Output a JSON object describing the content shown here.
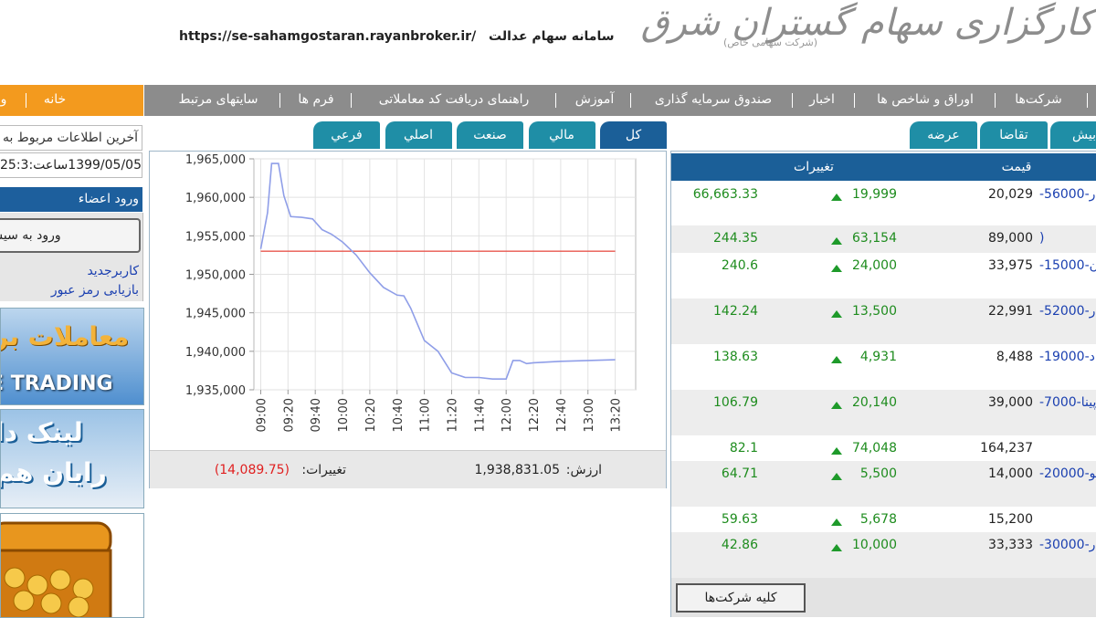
{
  "header": {
    "logo": "کارگزاری سهام گستران شرق",
    "logo_sub": "(شرکت سهامی خاص)",
    "site_title": "سامانه سهام عدالت",
    "url": "https://se-sahamgostaran.rayanbroker.ir/"
  },
  "nav": {
    "home_items": [
      "خانه",
      "و"
    ],
    "items": [
      "شرکت‌ها",
      "اوراق و شاخص ها",
      "اخبار",
      "صندوق سرمایه گذاری",
      "آموزش",
      "راهنمای دریافت کد معاملاتی",
      "فرم ها",
      "سایتهای مرتبط"
    ]
  },
  "sidebar": {
    "last_update_label": "آخرین اطلاعات مربوط به",
    "last_update": "1399/05/05ساعت:25:3",
    "members_title": "ورود اعضاء",
    "login_button": "ورود به سیس",
    "links": [
      "کاربرجدید",
      "بازیابی رمز عبور"
    ],
    "banners": [
      {
        "line1": "معاملات بر",
        "line2": "E TRADING"
      },
      {
        "line1": "لینک دا",
        "line2": "رایان هم"
      }
    ]
  },
  "index_panel": {
    "tabs": [
      "کل",
      "مالي",
      "صنعت",
      "اصلي",
      "فرعي"
    ],
    "active_tab": 0,
    "chart": {
      "type": "line",
      "x": [
        "09:00",
        "09:05",
        "09:08",
        "09:13",
        "09:17",
        "09:22",
        "09:30",
        "09:38",
        "09:45",
        "09:52",
        "10:00",
        "10:10",
        "10:20",
        "10:30",
        "10:40",
        "10:45",
        "10:50",
        "11:00",
        "11:10",
        "11:20",
        "11:30",
        "11:40",
        "11:50",
        "12:00",
        "12:05",
        "12:10",
        "12:15",
        "12:20",
        "12:40",
        "13:00",
        "13:20"
      ],
      "series": [
        {
          "color": "#8f9ee8",
          "values": [
            1953300,
            1958000,
            1964400,
            1964400,
            1960200,
            1957500,
            1957400,
            1957200,
            1955800,
            1955200,
            1954200,
            1952500,
            1950200,
            1948300,
            1947300,
            1947200,
            1945600,
            1941400,
            1940000,
            1937200,
            1936600,
            1936600,
            1936400,
            1936400,
            1938800,
            1938800,
            1938400,
            1938500,
            1938700,
            1938800,
            1938900
          ]
        }
      ],
      "reference": {
        "value": 1953000,
        "color": "#e8574e"
      },
      "xlim": [
        "08:55",
        "13:35"
      ],
      "xticks": [
        "09:00",
        "09:20",
        "09:40",
        "10:00",
        "10:20",
        "10:40",
        "11:00",
        "11:20",
        "11:40",
        "12:00",
        "12:20",
        "12:40",
        "13:00",
        "13:20"
      ],
      "ylim": [
        1935000,
        1965000
      ],
      "yticks": [
        {
          "value": 1935000,
          "label": "1,935,000"
        },
        {
          "value": 1940000,
          "label": "1,940,000"
        },
        {
          "value": 1945000,
          "label": "1,945,000"
        },
        {
          "value": 1950000,
          "label": "1,950,000"
        },
        {
          "value": 1955000,
          "label": "1,955,000"
        },
        {
          "value": 1960000,
          "label": "1,960,000"
        },
        {
          "value": 1965000,
          "label": "1,965,000"
        }
      ],
      "grid": true
    },
    "value_label": "ارزش:",
    "value": "1,938,831.05",
    "change_label": "تغییرات:",
    "change": "(14,089.75)"
  },
  "market": {
    "tabs": [
      "عرضه",
      "تقاضا",
      "بیش"
    ],
    "columns": [
      "قیمت",
      "تغییرات"
    ],
    "rows": [
      {
        "name": "-56000-ر",
        "price": "20,029",
        "change": "19,999",
        "value": "66,663.33"
      },
      {
        "name": ")",
        "price": "89,000",
        "change": "63,154",
        "value": "244.35"
      },
      {
        "name": "-15000-ن",
        "price": "33,975",
        "change": "24,000",
        "value": "240.6"
      },
      {
        "name": "-52000-ر",
        "price": "22,991",
        "change": "13,500",
        "value": "142.24"
      },
      {
        "name": "-19000-د",
        "price": "8,488",
        "change": "4,931",
        "value": "138.63"
      },
      {
        "name": "-7000-پینا",
        "price": "39,000",
        "change": "20,140",
        "value": "106.79"
      },
      {
        "price": "164,237",
        "change": "74,048",
        "value": "82.1"
      },
      {
        "name": "-20000-لو",
        "price": "14,000",
        "change": "5,500",
        "value": "64.71"
      },
      {
        "price": "15,200",
        "change": "5,678",
        "value": "59.63"
      },
      {
        "name": "-30000-ر",
        "price": "33,333",
        "change": "10,000",
        "value": "42.86"
      }
    ],
    "all_button": "کلیه شرکت‌ها"
  }
}
